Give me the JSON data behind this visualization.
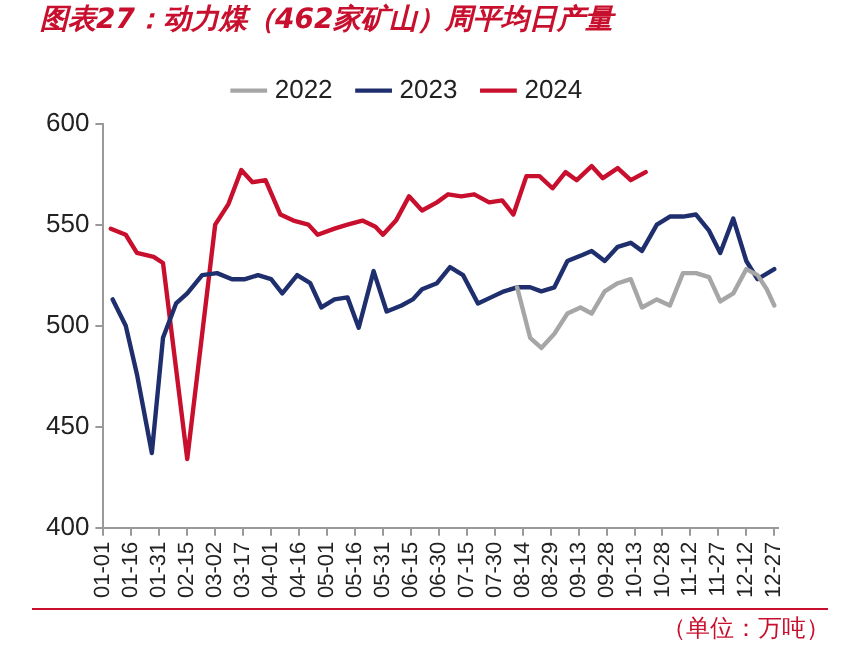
{
  "chart_data": {
    "type": "line",
    "title": "图表27：动力煤（462家矿山）周平均日产量",
    "annotations": [
      "（单位：万吨）"
    ],
    "xlim": [
      "--01-01",
      "--12-29"
    ],
    "xticks": [
      {
        "value": "--01-01",
        "label": "01-01"
      },
      {
        "value": "--01-16",
        "label": "01-16"
      },
      {
        "value": "--01-31",
        "label": "01-31"
      },
      {
        "value": "--02-15",
        "label": "02-15"
      },
      {
        "value": "--03-02",
        "label": "03-02"
      },
      {
        "value": "--03-17",
        "label": "03-17"
      },
      {
        "value": "--04-01",
        "label": "04-01"
      },
      {
        "value": "--04-16",
        "label": "04-16"
      },
      {
        "value": "--05-01",
        "label": "05-01"
      },
      {
        "value": "--05-16",
        "label": "05-16"
      },
      {
        "value": "--05-31",
        "label": "05-31"
      },
      {
        "value": "--06-15",
        "label": "06-15"
      },
      {
        "value": "--06-30",
        "label": "06-30"
      },
      {
        "value": "--07-15",
        "label": "07-15"
      },
      {
        "value": "--07-30",
        "label": "07-30"
      },
      {
        "value": "--08-14",
        "label": "08-14"
      },
      {
        "value": "--08-29",
        "label": "08-29"
      },
      {
        "value": "--09-13",
        "label": "09-13"
      },
      {
        "value": "--09-28",
        "label": "09-28"
      },
      {
        "value": "--10-13",
        "label": "10-13"
      },
      {
        "value": "--10-28",
        "label": "10-28"
      },
      {
        "value": "--11-12",
        "label": "11-12"
      },
      {
        "value": "--11-27",
        "label": "11-27"
      },
      {
        "value": "--12-12",
        "label": "12-12"
      },
      {
        "value": "--12-27",
        "label": "12-27"
      }
    ],
    "ylim": [
      400,
      600
    ],
    "yticks": [
      400,
      450,
      500,
      550,
      600
    ],
    "grid": false,
    "legend": "top",
    "marker": "none",
    "line_style": "solid",
    "series": [
      {
        "name": "2022",
        "color": "#a6a6a6",
        "x": [
          "--08-11",
          "--08-18",
          "--08-24",
          "--08-31",
          "--09-07",
          "--09-14",
          "--09-20",
          "--09-27",
          "--10-04",
          "--10-11",
          "--10-17",
          "--10-25",
          "--11-01",
          "--11-08",
          "--11-15",
          "--11-22",
          "--11-28",
          "--12-05",
          "--12-12",
          "--12-18",
          "--12-23",
          "--12-27"
        ],
        "values": [
          519,
          494,
          489,
          496,
          506,
          509,
          506,
          517,
          521,
          523,
          509,
          513,
          510,
          526,
          526,
          524,
          512,
          516,
          528,
          525,
          518,
          510
        ]
      },
      {
        "name": "2023",
        "color": "#1f2f6e",
        "x": [
          "--01-06",
          "--01-13",
          "--01-19",
          "--01-27",
          "--02-02",
          "--02-09",
          "--02-15",
          "--02-23",
          "--03-03",
          "--03-11",
          "--03-18",
          "--03-25",
          "--04-01",
          "--04-07",
          "--04-15",
          "--04-22",
          "--04-28",
          "--05-05",
          "--05-12",
          "--05-18",
          "--05-26",
          "--06-02",
          "--06-10",
          "--06-16",
          "--06-21",
          "--06-29",
          "--07-06",
          "--07-13",
          "--07-21",
          "--07-28",
          "--08-04",
          "--08-11",
          "--08-18",
          "--08-24",
          "--08-31",
          "--09-07",
          "--09-15",
          "--09-20",
          "--09-27",
          "--10-04",
          "--10-11",
          "--10-17",
          "--10-25",
          "--11-01",
          "--11-08",
          "--11-15",
          "--11-22",
          "--11-28",
          "--12-05",
          "--12-12",
          "--12-18",
          "--12-27"
        ],
        "values": [
          513,
          500,
          476,
          437,
          494,
          511,
          516,
          525,
          526,
          523,
          523,
          525,
          523,
          516,
          525,
          521,
          509,
          513,
          514,
          499,
          527,
          507,
          510,
          513,
          518,
          521,
          529,
          525,
          511,
          514,
          517,
          519,
          519,
          517,
          519,
          532,
          535,
          537,
          532,
          539,
          541,
          537,
          550,
          554,
          554,
          555,
          547,
          536,
          553,
          532,
          523,
          528
        ]
      },
      {
        "name": "2024",
        "color": "#c8102e",
        "x": [
          "--01-05",
          "--01-13",
          "--01-19",
          "--01-28",
          "--02-02",
          "--02-15",
          "--03-02",
          "--03-09",
          "--03-16",
          "--03-22",
          "--03-29",
          "--04-06",
          "--04-13",
          "--04-21",
          "--04-26",
          "--05-05",
          "--05-12",
          "--05-20",
          "--05-27",
          "--05-31",
          "--06-07",
          "--06-14",
          "--06-21",
          "--06-29",
          "--07-05",
          "--07-12",
          "--07-19",
          "--07-27",
          "--08-03",
          "--08-09",
          "--08-16",
          "--08-23",
          "--08-30",
          "--09-06",
          "--09-12",
          "--09-20",
          "--09-26",
          "--10-04",
          "--10-11",
          "--10-19"
        ],
        "values": [
          548,
          545,
          536,
          534,
          531,
          434,
          550,
          560,
          577,
          571,
          572,
          555,
          552,
          550,
          545,
          548,
          550,
          552,
          549,
          545,
          552,
          564,
          557,
          561,
          565,
          564,
          565,
          561,
          562,
          555,
          574,
          574,
          568,
          576,
          572,
          579,
          573,
          578,
          572,
          576
        ]
      }
    ]
  }
}
